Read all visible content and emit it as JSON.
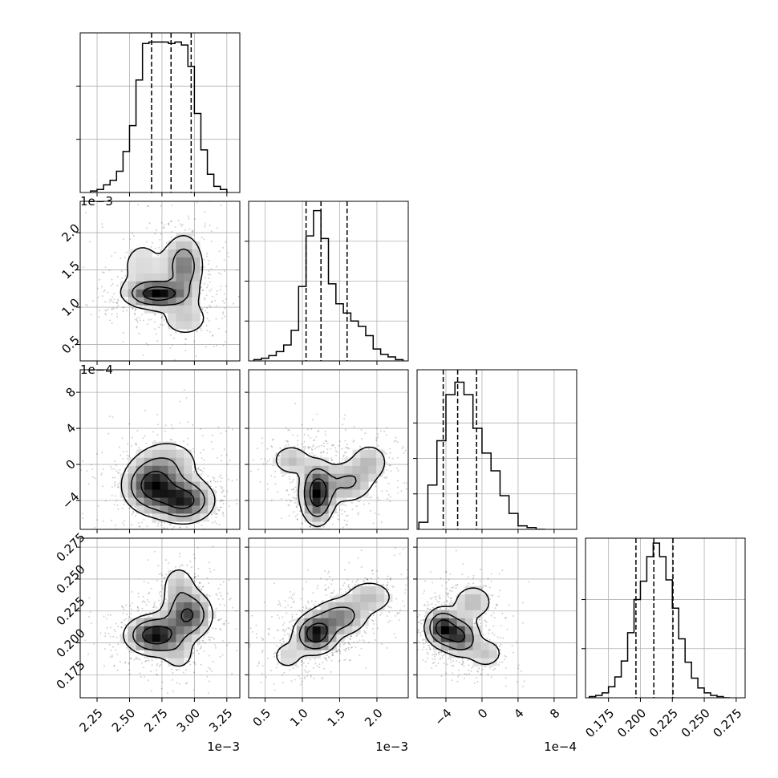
{
  "chart_data": {
    "type": "corner",
    "quantiles": [
      0.16,
      0.5,
      0.84
    ],
    "parameters": [
      {
        "name": "",
        "range": [
          2.12,
          3.35
        ],
        "ticks": [
          2.25,
          2.5,
          2.75,
          3.0,
          3.25
        ],
        "tick_labels": [
          "2.25",
          "2.50",
          "2.75",
          "3.00",
          "3.25"
        ],
        "offset_label": "1e−3",
        "quantile_values": [
          2.67,
          2.82,
          2.975
        ],
        "hist_edges": [
          2.2,
          2.25,
          2.3,
          2.35,
          2.4,
          2.45,
          2.5,
          2.55,
          2.6,
          2.65,
          2.7,
          2.75,
          2.8,
          2.85,
          2.9,
          2.95,
          3.0,
          3.05,
          3.1,
          3.15,
          3.2,
          3.25
        ],
        "hist_values": [
          1,
          2,
          5,
          8,
          14,
          27,
          44,
          74,
          98,
          99,
          99,
          99,
          98,
          99,
          97,
          83,
          52,
          28,
          12,
          4,
          2
        ]
      },
      {
        "name": "",
        "range": [
          0.28,
          2.42
        ],
        "ticks": [
          0.5,
          1.0,
          1.5,
          2.0
        ],
        "tick_labels": [
          "0.5",
          "1.0",
          "1.5",
          "2.0"
        ],
        "offset_label": "1e−3",
        "quantile_values": [
          1.05,
          1.25,
          1.6
        ],
        "hist_edges": [
          0.35,
          0.45,
          0.55,
          0.65,
          0.75,
          0.85,
          0.95,
          1.05,
          1.15,
          1.25,
          1.35,
          1.45,
          1.55,
          1.65,
          1.75,
          1.85,
          1.95,
          2.05,
          2.15,
          2.25,
          2.35
        ],
        "hist_values": [
          1,
          2,
          4,
          7,
          12,
          23,
          56,
          94,
          113,
          92,
          58,
          43,
          36,
          30,
          26,
          19,
          9,
          5,
          3,
          1
        ]
      },
      {
        "name": "",
        "range": [
          -7.2,
          10.5
        ],
        "ticks": [
          -4,
          0,
          4,
          8
        ],
        "tick_labels": [
          "−4",
          "0",
          "4",
          "8"
        ],
        "offset_label": "1e−4",
        "quantile_values": [
          -4.3,
          -2.7,
          -0.6
        ],
        "hist_edges": [
          -7.0,
          -6.0,
          -5.0,
          -4.0,
          -3.0,
          -2.0,
          -1.0,
          0.0,
          1.0,
          2.0,
          3.0,
          4.0,
          5.0,
          6.0,
          7.0
        ],
        "hist_values": [
          4,
          25,
          50,
          76,
          83,
          76,
          57,
          43,
          33,
          19,
          9,
          2,
          1,
          0
        ]
      },
      {
        "name": "",
        "range": [
          0.157,
          0.282
        ],
        "ticks": [
          0.175,
          0.2,
          0.225,
          0.25,
          0.275
        ],
        "tick_labels": [
          "0.175",
          "0.200",
          "0.225",
          "0.250",
          "0.275"
        ],
        "offset_label": "",
        "quantile_values": [
          0.1965,
          0.2105,
          0.2255
        ],
        "hist_edges": [
          0.16,
          0.165,
          0.17,
          0.175,
          0.18,
          0.185,
          0.19,
          0.195,
          0.2,
          0.205,
          0.21,
          0.215,
          0.22,
          0.225,
          0.23,
          0.235,
          0.24,
          0.245,
          0.25,
          0.255,
          0.26,
          0.265,
          0.27
        ],
        "hist_values": [
          1,
          2,
          4,
          9,
          17,
          30,
          53,
          80,
          95,
          115,
          126,
          115,
          96,
          73,
          48,
          29,
          16,
          8,
          4,
          2,
          1,
          0
        ]
      }
    ],
    "hist_ticks_y": [
      [
        35,
        70
      ],
      [
        30,
        60,
        90
      ],
      [
        20,
        40,
        60
      ],
      [
        40,
        80
      ]
    ],
    "hist_ymax": [
      105,
      120,
      90,
      130
    ],
    "pairs": [
      {
        "row": 1,
        "col": 0,
        "density": [
          {
            "x": 2.72,
            "y": 1.18,
            "sx": 0.13,
            "sy": 0.1,
            "w": 1.0
          },
          {
            "x": 2.92,
            "y": 1.55,
            "sx": 0.08,
            "sy": 0.23,
            "w": 0.6
          },
          {
            "x": 2.93,
            "y": 0.85,
            "sx": 0.12,
            "sy": 0.16,
            "w": 0.25
          },
          {
            "x": 2.6,
            "y": 1.55,
            "sx": 0.14,
            "sy": 0.3,
            "w": 0.18
          }
        ],
        "points_count": 900
      },
      {
        "row": 2,
        "col": 0,
        "density": [
          {
            "x": 2.68,
            "y": -2.4,
            "sx": 0.12,
            "sy": 1.6,
            "w": 1.0
          },
          {
            "x": 2.92,
            "y": -4.0,
            "sx": 0.12,
            "sy": 1.3,
            "w": 0.95
          },
          {
            "x": 2.8,
            "y": 0.2,
            "sx": 0.15,
            "sy": 1.6,
            "w": 0.3
          }
        ],
        "points_count": 900
      },
      {
        "row": 2,
        "col": 1,
        "density": [
          {
            "x": 1.2,
            "y": -3.2,
            "sx": 0.12,
            "sy": 1.8,
            "w": 1.0
          },
          {
            "x": 1.6,
            "y": -2.0,
            "sx": 0.2,
            "sy": 1.3,
            "w": 0.4
          },
          {
            "x": 0.85,
            "y": 0.5,
            "sx": 0.15,
            "sy": 1.0,
            "w": 0.3
          },
          {
            "x": 1.9,
            "y": 0.3,
            "sx": 0.15,
            "sy": 1.2,
            "w": 0.3
          }
        ],
        "points_count": 900
      },
      {
        "row": 3,
        "col": 0,
        "density": [
          {
            "x": 2.7,
            "y": 0.206,
            "sx": 0.12,
            "sy": 0.008,
            "w": 1.0
          },
          {
            "x": 2.95,
            "y": 0.222,
            "sx": 0.1,
            "sy": 0.01,
            "w": 0.75
          },
          {
            "x": 2.88,
            "y": 0.245,
            "sx": 0.08,
            "sy": 0.01,
            "w": 0.25
          },
          {
            "x": 2.88,
            "y": 0.19,
            "sx": 0.08,
            "sy": 0.008,
            "w": 0.2
          }
        ],
        "points_count": 900
      },
      {
        "row": 3,
        "col": 1,
        "density": [
          {
            "x": 1.18,
            "y": 0.207,
            "sx": 0.15,
            "sy": 0.008,
            "w": 1.0
          },
          {
            "x": 1.5,
            "y": 0.22,
            "sx": 0.2,
            "sy": 0.008,
            "w": 0.55
          },
          {
            "x": 1.9,
            "y": 0.236,
            "sx": 0.2,
            "sy": 0.008,
            "w": 0.3
          },
          {
            "x": 0.8,
            "y": 0.19,
            "sx": 0.15,
            "sy": 0.008,
            "w": 0.2
          }
        ],
        "points_count": 900
      },
      {
        "row": 3,
        "col": 2,
        "density": [
          {
            "x": -4.4,
            "y": 0.212,
            "sx": 1.0,
            "sy": 0.008,
            "w": 1.0
          },
          {
            "x": -2.4,
            "y": 0.205,
            "sx": 1.1,
            "sy": 0.008,
            "w": 0.85
          },
          {
            "x": -1.0,
            "y": 0.232,
            "sx": 1.3,
            "sy": 0.008,
            "w": 0.35
          },
          {
            "x": 0.4,
            "y": 0.192,
            "sx": 1.2,
            "sy": 0.007,
            "w": 0.3
          }
        ],
        "points_count": 900
      }
    ]
  }
}
